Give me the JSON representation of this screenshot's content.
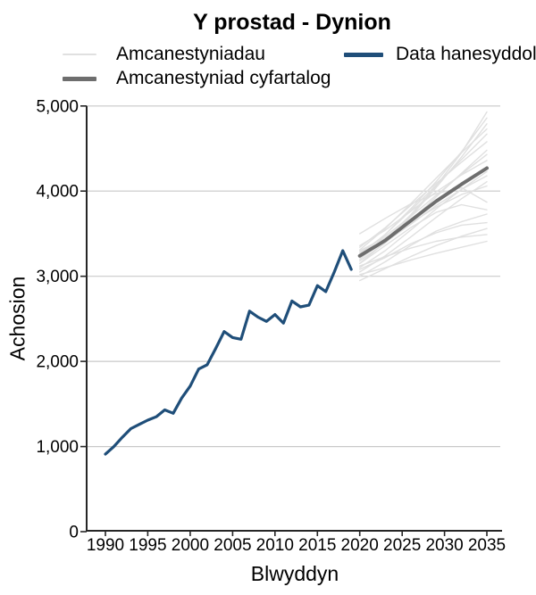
{
  "figure": {
    "title": "Y prostad - Dynion",
    "x_axis_title": "Blwyddyn",
    "y_axis_title": "Achosion"
  },
  "legend": {
    "items": [
      {
        "label": "Amcanestyniadau",
        "swatch": "projection"
      },
      {
        "label": "Amcanestyniad cyfartalog",
        "swatch": "mean"
      },
      {
        "label": "Data hanesyddol",
        "swatch": "historical"
      }
    ]
  },
  "chart_data": {
    "type": "line",
    "title": "Y prostad - Dynion",
    "xlabel": "Blwyddyn",
    "ylabel": "Achosion",
    "xlim": [
      1990,
      2035
    ],
    "ylim": [
      0,
      5000
    ],
    "grid": "horizontal",
    "legend_position": "top",
    "colors": {
      "historical": "#1f4e79",
      "mean": "#6e6e6e",
      "projection": "#e0e0e0",
      "gridline": "#c9c9c9",
      "axis": "#262626"
    },
    "y_ticks": [
      {
        "v": 0,
        "label": "0"
      },
      {
        "v": 1000,
        "label": "1,000"
      },
      {
        "v": 2000,
        "label": "2,000"
      },
      {
        "v": 3000,
        "label": "3,000"
      },
      {
        "v": 4000,
        "label": "4,000"
      },
      {
        "v": 5000,
        "label": "5,000"
      }
    ],
    "x_ticks": [
      {
        "v": 1990,
        "label": "1990"
      },
      {
        "v": 1995,
        "label": "1995"
      },
      {
        "v": 2000,
        "label": "2000"
      },
      {
        "v": 2005,
        "label": "2005"
      },
      {
        "v": 2010,
        "label": "2010"
      },
      {
        "v": 2015,
        "label": "2015"
      },
      {
        "v": 2020,
        "label": "2020"
      },
      {
        "v": 2025,
        "label": "2025"
      },
      {
        "v": 2030,
        "label": "2030"
      },
      {
        "v": 2035,
        "label": "2035"
      }
    ],
    "series": [
      {
        "name": "Data hanesyddol",
        "role": "historical",
        "x": [
          1990,
          1991,
          1992,
          1993,
          1994,
          1995,
          1996,
          1997,
          1998,
          1999,
          2000,
          2001,
          2002,
          2003,
          2004,
          2005,
          2006,
          2007,
          2008,
          2009,
          2010,
          2011,
          2012,
          2013,
          2014,
          2015,
          2016,
          2017,
          2018,
          2019
        ],
        "values": [
          910,
          1000,
          1110,
          1210,
          1260,
          1310,
          1350,
          1430,
          1390,
          1570,
          1710,
          1910,
          1960,
          2150,
          2350,
          2280,
          2260,
          2590,
          2520,
          2470,
          2550,
          2450,
          2710,
          2640,
          2660,
          2890,
          2820,
          3050,
          3300,
          3080
        ]
      },
      {
        "name": "Amcanestyniad cyfartalog",
        "role": "mean",
        "x": [
          2020,
          2023,
          2026,
          2029,
          2032,
          2035
        ],
        "values": [
          3240,
          3420,
          3650,
          3880,
          4080,
          4270
        ]
      }
    ],
    "projections": {
      "name": "Amcanestyniadau",
      "x": [
        2020,
        2023,
        2026,
        2029,
        2032,
        2035
      ],
      "lines": [
        [
          3200,
          3430,
          3720,
          4060,
          4450,
          4930
        ],
        [
          3240,
          3490,
          3790,
          4110,
          4460,
          4860
        ],
        [
          3150,
          3400,
          3700,
          4040,
          4400,
          4790
        ],
        [
          3310,
          3560,
          3850,
          4150,
          4450,
          4730
        ],
        [
          3260,
          3490,
          3770,
          4070,
          4370,
          4670
        ],
        [
          3340,
          3570,
          3830,
          4090,
          4340,
          4580
        ],
        [
          3180,
          3390,
          3650,
          3930,
          4210,
          4480
        ],
        [
          3280,
          3470,
          3700,
          3950,
          4200,
          4430
        ],
        [
          3360,
          3540,
          3760,
          3990,
          4190,
          4360
        ],
        [
          3100,
          3300,
          3540,
          3790,
          4020,
          4230
        ],
        [
          3220,
          3400,
          3610,
          3830,
          4020,
          4180
        ],
        [
          3050,
          3240,
          3460,
          3690,
          3910,
          4110
        ],
        [
          3300,
          3450,
          3630,
          3810,
          3960,
          4060
        ],
        [
          3500,
          3680,
          3850,
          3970,
          4040,
          3870
        ],
        [
          3150,
          3360,
          3570,
          3750,
          3840,
          3780
        ],
        [
          3000,
          3170,
          3360,
          3530,
          3640,
          3730
        ],
        [
          3080,
          3220,
          3380,
          3510,
          3600,
          3630
        ],
        [
          2950,
          3090,
          3230,
          3360,
          3470,
          3560
        ],
        [
          3120,
          3230,
          3330,
          3410,
          3460,
          3490
        ],
        [
          3020,
          3100,
          3190,
          3270,
          3340,
          3410
        ]
      ]
    }
  }
}
